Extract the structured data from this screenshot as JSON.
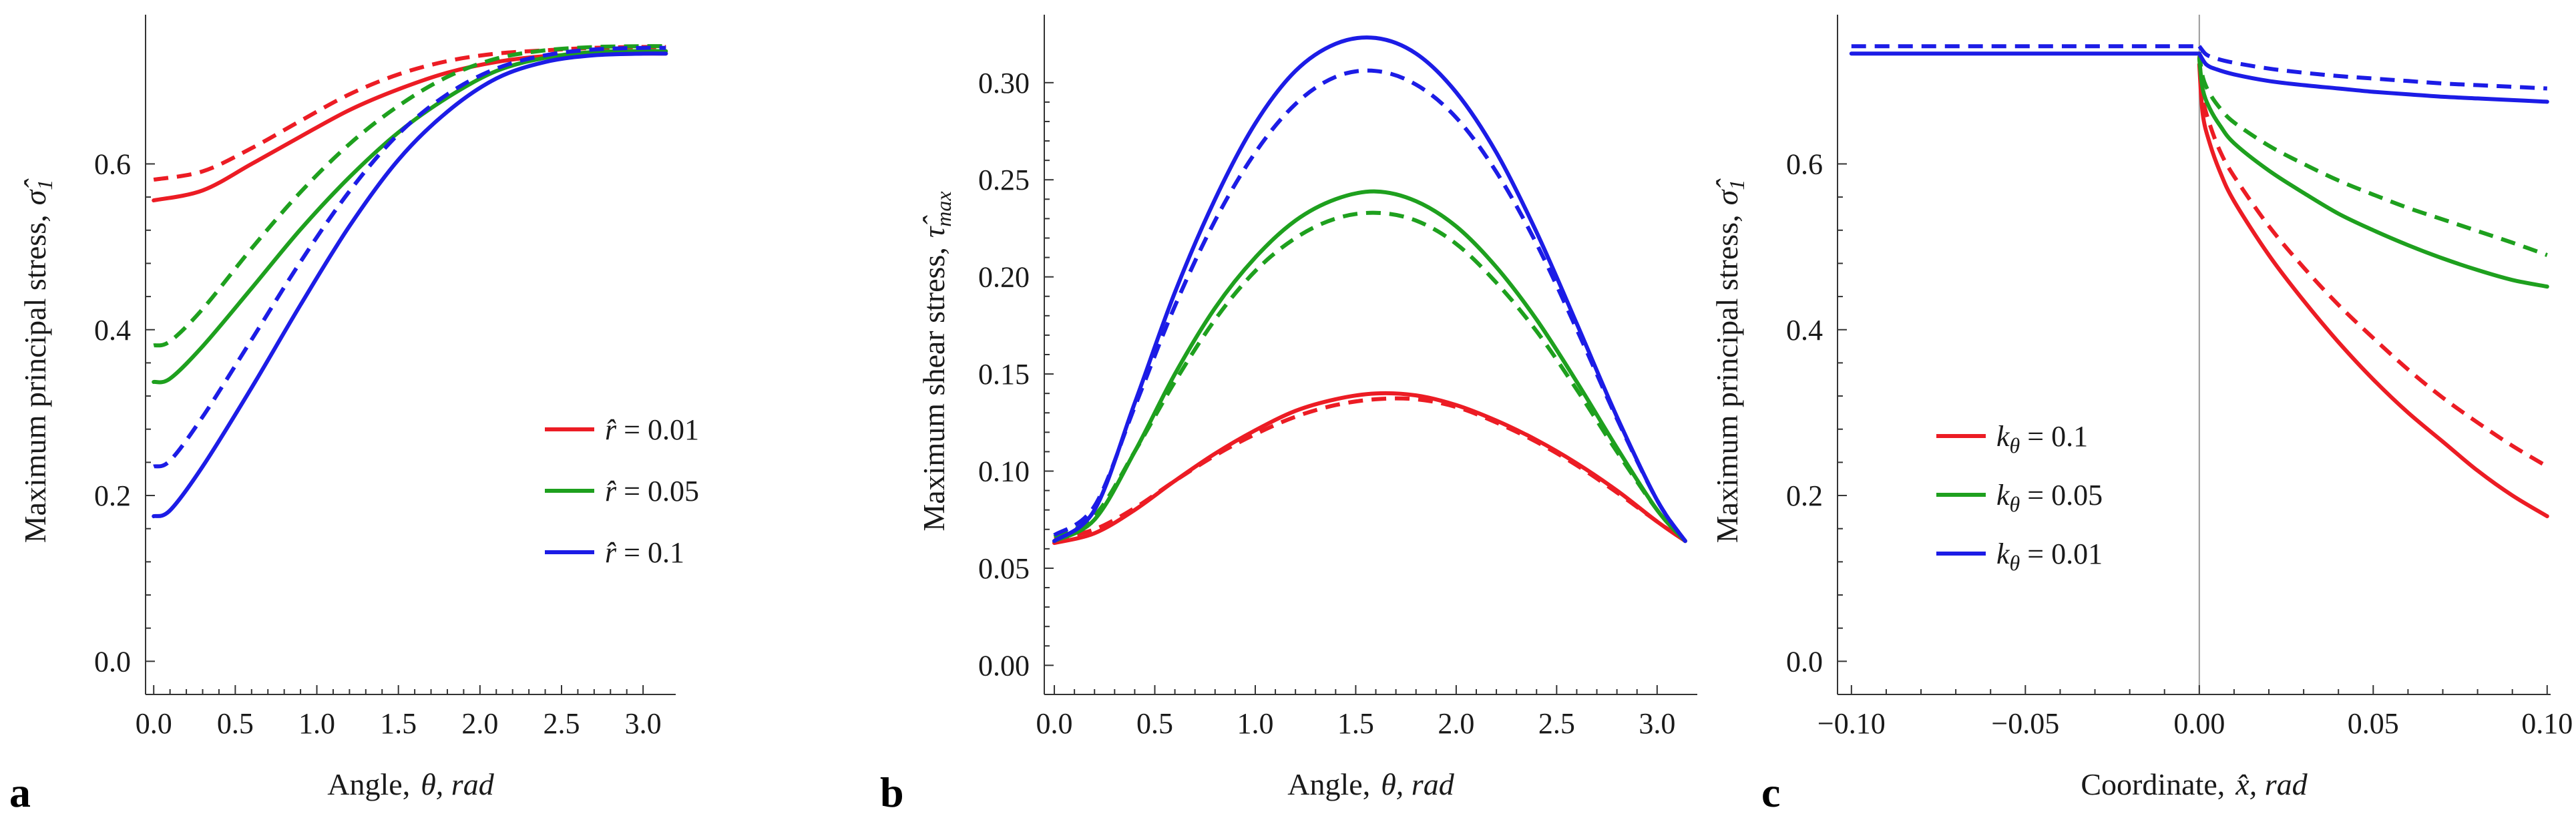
{
  "colors": {
    "red": "#ec1c24",
    "green": "#1ea01e",
    "blue": "#1c1ce6"
  },
  "chart_data": [
    {
      "id": "a",
      "type": "line",
      "panel_label": "a",
      "xlabel_text": "Angle,",
      "xlabel_symbol": "θ, rad",
      "ylabel_text": "Maximum principal stress,",
      "ylabel_symbol": "σ̂",
      "ylabel_sub": "1",
      "xlim": [
        -0.05,
        3.2
      ],
      "ylim": [
        -0.04,
        0.78
      ],
      "xticks": [
        0.0,
        0.5,
        1.0,
        1.5,
        2.0,
        2.5,
        3.0
      ],
      "xtick_labels": [
        "0.0",
        "0.5",
        "1.0",
        "1.5",
        "2.0",
        "2.5",
        "3.0"
      ],
      "yticks": [
        0.0,
        0.2,
        0.4,
        0.6
      ],
      "ytick_labels": [
        "0.0",
        "0.2",
        "0.4",
        "0.6"
      ],
      "legend_position": "center-right",
      "legend": [
        {
          "symbol": "r̂",
          "value": " = 0.01",
          "color": "red"
        },
        {
          "symbol": "r̂",
          "value": " = 0.05",
          "color": "green"
        },
        {
          "symbol": "r̂",
          "value": " = 0.1",
          "color": "blue"
        }
      ],
      "series": [
        {
          "name": "r=0.01 solid",
          "color": "red",
          "dashed": false,
          "x": [
            0.0,
            0.3,
            0.6,
            0.9,
            1.2,
            1.5,
            1.8,
            2.1,
            2.4,
            2.7,
            3.0,
            3.14
          ],
          "y": [
            0.556,
            0.568,
            0.6,
            0.633,
            0.665,
            0.69,
            0.71,
            0.723,
            0.73,
            0.732,
            0.733,
            0.733
          ]
        },
        {
          "name": "r=0.01 dashed",
          "color": "red",
          "dashed": true,
          "x": [
            0.0,
            0.3,
            0.6,
            0.9,
            1.2,
            1.5,
            1.8,
            2.1,
            2.4,
            2.7,
            3.0,
            3.14
          ],
          "y": [
            0.581,
            0.591,
            0.619,
            0.652,
            0.684,
            0.708,
            0.724,
            0.733,
            0.737,
            0.74,
            0.741,
            0.741
          ]
        },
        {
          "name": "r=0.05 solid",
          "color": "green",
          "dashed": false,
          "x": [
            0.0,
            0.1,
            0.3,
            0.6,
            0.9,
            1.2,
            1.5,
            1.8,
            2.1,
            2.4,
            2.7,
            3.0,
            3.14
          ],
          "y": [
            0.337,
            0.341,
            0.38,
            0.45,
            0.521,
            0.584,
            0.638,
            0.68,
            0.712,
            0.728,
            0.735,
            0.736,
            0.736
          ]
        },
        {
          "name": "r=0.05 dashed",
          "color": "green",
          "dashed": true,
          "x": [
            0.0,
            0.1,
            0.3,
            0.6,
            0.9,
            1.2,
            1.5,
            1.8,
            2.1,
            2.4,
            2.7,
            3.0,
            3.14
          ],
          "y": [
            0.381,
            0.386,
            0.425,
            0.498,
            0.566,
            0.624,
            0.67,
            0.705,
            0.727,
            0.737,
            0.741,
            0.742,
            0.742
          ]
        },
        {
          "name": "r=0.1 solid",
          "color": "blue",
          "dashed": false,
          "x": [
            0.0,
            0.1,
            0.3,
            0.6,
            0.9,
            1.2,
            1.5,
            1.8,
            2.1,
            2.4,
            2.7,
            3.0,
            3.14
          ],
          "y": [
            0.175,
            0.182,
            0.235,
            0.33,
            0.43,
            0.525,
            0.605,
            0.663,
            0.703,
            0.723,
            0.731,
            0.733,
            0.733
          ]
        },
        {
          "name": "r=0.1 dashed",
          "color": "blue",
          "dashed": true,
          "x": [
            0.0,
            0.1,
            0.3,
            0.6,
            0.9,
            1.2,
            1.5,
            1.8,
            2.1,
            2.4,
            2.7,
            3.0,
            3.14
          ],
          "y": [
            0.235,
            0.242,
            0.295,
            0.388,
            0.482,
            0.567,
            0.636,
            0.684,
            0.715,
            0.731,
            0.738,
            0.74,
            0.74
          ]
        }
      ]
    },
    {
      "id": "b",
      "type": "line",
      "panel_label": "b",
      "xlabel_text": "Angle,",
      "xlabel_symbol": "θ, rad",
      "ylabel_text": "Maximum shear stress,",
      "ylabel_symbol": "τ̂",
      "ylabel_sub": "max",
      "xlim": [
        -0.05,
        3.2
      ],
      "ylim": [
        -0.015,
        0.335
      ],
      "xticks": [
        0.0,
        0.5,
        1.0,
        1.5,
        2.0,
        2.5,
        3.0
      ],
      "xtick_labels": [
        "0.0",
        "0.5",
        "1.0",
        "1.5",
        "2.0",
        "2.5",
        "3.0"
      ],
      "yticks": [
        0.0,
        0.05,
        0.1,
        0.15,
        0.2,
        0.25,
        0.3
      ],
      "ytick_labels": [
        "0.00",
        "0.05",
        "0.10",
        "0.15",
        "0.20",
        "0.25",
        "0.30"
      ],
      "legend": [],
      "series": [
        {
          "name": "r=0.01 solid",
          "color": "red",
          "dashed": false,
          "x": [
            0.0,
            0.2,
            0.4,
            0.6,
            0.8,
            1.0,
            1.2,
            1.4,
            1.6,
            1.8,
            2.0,
            2.2,
            2.4,
            2.6,
            2.8,
            3.0,
            3.14
          ],
          "y": [
            0.063,
            0.068,
            0.08,
            0.095,
            0.109,
            0.121,
            0.131,
            0.137,
            0.14,
            0.139,
            0.134,
            0.126,
            0.116,
            0.104,
            0.09,
            0.074,
            0.064
          ]
        },
        {
          "name": "r=0.01 dashed",
          "color": "red",
          "dashed": true,
          "x": [
            0.0,
            0.2,
            0.4,
            0.6,
            0.8,
            1.0,
            1.2,
            1.4,
            1.6,
            1.8,
            2.0,
            2.2,
            2.4,
            2.6,
            2.8,
            3.0,
            3.14
          ],
          "y": [
            0.065,
            0.07,
            0.081,
            0.095,
            0.108,
            0.119,
            0.128,
            0.134,
            0.137,
            0.137,
            0.133,
            0.125,
            0.115,
            0.103,
            0.089,
            0.074,
            0.064
          ]
        },
        {
          "name": "r=0.05 solid",
          "color": "green",
          "dashed": false,
          "x": [
            0.0,
            0.2,
            0.4,
            0.6,
            0.8,
            1.0,
            1.2,
            1.4,
            1.6,
            1.8,
            2.0,
            2.2,
            2.4,
            2.6,
            2.8,
            3.0,
            3.14
          ],
          "y": [
            0.064,
            0.075,
            0.11,
            0.15,
            0.184,
            0.21,
            0.229,
            0.24,
            0.244,
            0.239,
            0.226,
            0.205,
            0.178,
            0.146,
            0.112,
            0.08,
            0.064
          ]
        },
        {
          "name": "r=0.05 dashed",
          "color": "green",
          "dashed": true,
          "x": [
            0.0,
            0.2,
            0.4,
            0.6,
            0.8,
            1.0,
            1.2,
            1.4,
            1.6,
            1.8,
            2.0,
            2.2,
            2.4,
            2.6,
            2.8,
            3.0,
            3.14
          ],
          "y": [
            0.066,
            0.077,
            0.11,
            0.146,
            0.178,
            0.203,
            0.22,
            0.23,
            0.233,
            0.229,
            0.217,
            0.197,
            0.172,
            0.142,
            0.11,
            0.08,
            0.064
          ]
        },
        {
          "name": "r=0.1 solid",
          "color": "blue",
          "dashed": false,
          "x": [
            0.0,
            0.2,
            0.4,
            0.6,
            0.8,
            1.0,
            1.2,
            1.4,
            1.6,
            1.8,
            2.0,
            2.2,
            2.4,
            2.6,
            2.8,
            3.0,
            3.14
          ],
          "y": [
            0.064,
            0.08,
            0.135,
            0.192,
            0.24,
            0.279,
            0.306,
            0.32,
            0.323,
            0.315,
            0.295,
            0.264,
            0.223,
            0.176,
            0.128,
            0.085,
            0.064
          ]
        },
        {
          "name": "r=0.1 dashed",
          "color": "blue",
          "dashed": true,
          "x": [
            0.0,
            0.2,
            0.4,
            0.6,
            0.8,
            1.0,
            1.2,
            1.4,
            1.6,
            1.8,
            2.0,
            2.2,
            2.4,
            2.6,
            2.8,
            3.0,
            3.14
          ],
          "y": [
            0.067,
            0.082,
            0.133,
            0.185,
            0.229,
            0.264,
            0.289,
            0.303,
            0.306,
            0.299,
            0.282,
            0.254,
            0.217,
            0.173,
            0.127,
            0.085,
            0.064
          ]
        }
      ]
    },
    {
      "id": "c",
      "type": "line",
      "panel_label": "c",
      "xlabel_text": "Coordinate,",
      "xlabel_symbol": "x̂, rad",
      "ylabel_text": "Maximum principal stress,",
      "ylabel_symbol": "σ̂",
      "ylabel_sub": "1",
      "xlim": [
        -0.104,
        0.101
      ],
      "ylim": [
        -0.04,
        0.78
      ],
      "xticks": [
        -0.1,
        -0.05,
        0.0,
        0.05,
        0.1
      ],
      "xtick_labels": [
        "−0.10",
        "−0.05",
        "0.00",
        "0.05",
        "0.10"
      ],
      "yticks": [
        0.0,
        0.2,
        0.4,
        0.6
      ],
      "ytick_labels": [
        "0.0",
        "0.2",
        "0.4",
        "0.6"
      ],
      "vline_at": 0.0,
      "legend_position": "center-left",
      "legend": [
        {
          "symbol": "k",
          "sub": "θ",
          "value": " = 0.1",
          "color": "red"
        },
        {
          "symbol": "k",
          "sub": "θ",
          "value": " = 0.05",
          "color": "green"
        },
        {
          "symbol": "k",
          "sub": "θ",
          "value": " = 0.01",
          "color": "blue"
        }
      ],
      "series": [
        {
          "name": "left solid",
          "color": "blue",
          "dashed": false,
          "x": [
            -0.1,
            0.0
          ],
          "y": [
            0.733,
            0.733
          ]
        },
        {
          "name": "left dashed",
          "color": "blue",
          "dashed": true,
          "x": [
            -0.1,
            0.0
          ],
          "y": [
            0.742,
            0.742
          ]
        },
        {
          "name": "k=0.1 solid",
          "color": "red",
          "dashed": false,
          "x": [
            0.0,
            0.001,
            0.003,
            0.006,
            0.01,
            0.02,
            0.03,
            0.04,
            0.05,
            0.06,
            0.07,
            0.08,
            0.09,
            0.1
          ],
          "y": [
            0.72,
            0.66,
            0.625,
            0.59,
            0.555,
            0.49,
            0.435,
            0.385,
            0.34,
            0.3,
            0.265,
            0.23,
            0.2,
            0.175
          ]
        },
        {
          "name": "k=0.1 dashed",
          "color": "red",
          "dashed": true,
          "x": [
            0.0,
            0.001,
            0.003,
            0.006,
            0.01,
            0.02,
            0.03,
            0.04,
            0.05,
            0.06,
            0.07,
            0.08,
            0.09,
            0.1
          ],
          "y": [
            0.73,
            0.68,
            0.648,
            0.615,
            0.585,
            0.525,
            0.475,
            0.43,
            0.39,
            0.352,
            0.318,
            0.288,
            0.26,
            0.235
          ]
        },
        {
          "name": "k=0.05 solid",
          "color": "green",
          "dashed": false,
          "x": [
            0.0,
            0.001,
            0.003,
            0.006,
            0.01,
            0.02,
            0.03,
            0.04,
            0.05,
            0.06,
            0.07,
            0.08,
            0.09,
            0.1
          ],
          "y": [
            0.727,
            0.69,
            0.667,
            0.646,
            0.625,
            0.592,
            0.565,
            0.54,
            0.52,
            0.502,
            0.486,
            0.472,
            0.46,
            0.452
          ]
        },
        {
          "name": "k=0.05 dashed",
          "color": "green",
          "dashed": true,
          "x": [
            0.0,
            0.001,
            0.003,
            0.006,
            0.01,
            0.02,
            0.03,
            0.04,
            0.05,
            0.06,
            0.07,
            0.08,
            0.09,
            0.1
          ],
          "y": [
            0.735,
            0.705,
            0.685,
            0.667,
            0.65,
            0.622,
            0.6,
            0.58,
            0.563,
            0.547,
            0.533,
            0.519,
            0.505,
            0.49
          ]
        },
        {
          "name": "k=0.01 solid",
          "color": "blue",
          "dashed": false,
          "x": [
            0.0,
            0.002,
            0.005,
            0.01,
            0.02,
            0.03,
            0.04,
            0.05,
            0.06,
            0.07,
            0.08,
            0.09,
            0.1
          ],
          "y": [
            0.733,
            0.72,
            0.714,
            0.708,
            0.7,
            0.695,
            0.691,
            0.687,
            0.684,
            0.681,
            0.679,
            0.677,
            0.675
          ]
        },
        {
          "name": "k=0.01 dashed",
          "color": "blue",
          "dashed": true,
          "x": [
            0.0,
            0.002,
            0.005,
            0.01,
            0.02,
            0.03,
            0.04,
            0.05,
            0.06,
            0.07,
            0.08,
            0.09,
            0.1
          ],
          "y": [
            0.742,
            0.732,
            0.727,
            0.722,
            0.715,
            0.71,
            0.706,
            0.703,
            0.7,
            0.697,
            0.695,
            0.693,
            0.691
          ]
        }
      ]
    }
  ]
}
